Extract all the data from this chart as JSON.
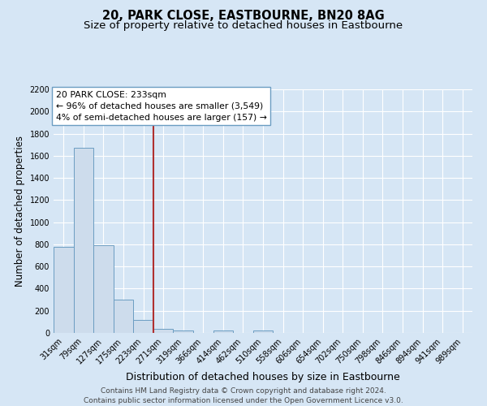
{
  "title": "20, PARK CLOSE, EASTBOURNE, BN20 8AG",
  "subtitle": "Size of property relative to detached houses in Eastbourne",
  "xlabel": "Distribution of detached houses by size in Eastbourne",
  "ylabel": "Number of detached properties",
  "categories": [
    "31sqm",
    "79sqm",
    "127sqm",
    "175sqm",
    "223sqm",
    "271sqm",
    "319sqm",
    "366sqm",
    "414sqm",
    "462sqm",
    "510sqm",
    "558sqm",
    "606sqm",
    "654sqm",
    "702sqm",
    "750sqm",
    "798sqm",
    "846sqm",
    "894sqm",
    "941sqm",
    "989sqm"
  ],
  "values": [
    775,
    1675,
    795,
    300,
    115,
    40,
    25,
    0,
    20,
    0,
    25,
    0,
    0,
    0,
    0,
    0,
    0,
    0,
    0,
    0,
    0
  ],
  "bar_color": "#cddcec",
  "bar_edge_color": "#6b9dc2",
  "vline_x": 4.5,
  "vline_color": "#b03030",
  "annotation_title": "20 PARK CLOSE: 233sqm",
  "annotation_line1": "← 96% of detached houses are smaller (3,549)",
  "annotation_line2": "4% of semi-detached houses are larger (157) →",
  "annotation_box_facecolor": "#ffffff",
  "annotation_box_edgecolor": "#6b9dc2",
  "ymax": 2200,
  "yticks": [
    0,
    200,
    400,
    600,
    800,
    1000,
    1200,
    1400,
    1600,
    1800,
    2000,
    2200
  ],
  "footer1": "Contains HM Land Registry data © Crown copyright and database right 2024.",
  "footer2": "Contains public sector information licensed under the Open Government Licence v3.0.",
  "background_color": "#d6e6f5",
  "plot_bg_color": "#d6e6f5",
  "title_fontsize": 10.5,
  "subtitle_fontsize": 9.5,
  "xlabel_fontsize": 9,
  "ylabel_fontsize": 8.5,
  "tick_fontsize": 7,
  "annotation_fontsize": 7.8,
  "footer_fontsize": 6.5
}
